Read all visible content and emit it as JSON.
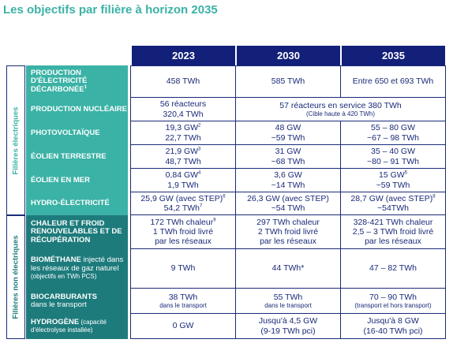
{
  "title": "Les objectifs par filière à horizon 2035",
  "headers": [
    "2023",
    "2030",
    "2035"
  ],
  "groups": {
    "elec": "Filières électriques",
    "nonelec": "Filières non électriques"
  },
  "rows": [
    {
      "label": "PRODUCTION D'ÉLECTRICITÉ DÉCARBONÉE",
      "label_sup": "1",
      "c2023": "458 TWh",
      "c2030": "585 TWh",
      "c2035": "Entre 650 et 693 TWh"
    },
    {
      "label": "PRODUCTION NUCLÉAIRE",
      "c2023_l1": "56 réacteurs",
      "c2023_l2": "320,4 TWh",
      "span_l1": "57 réacteurs en service 380 TWh",
      "span_l2": "(Cible haute à 420 TWh)"
    },
    {
      "label": "PHOTOVOLTAÏQUE",
      "c2023_l1": "19,3 GW",
      "c2023_sup": "2",
      "c2023_l2": "22,7 TWh",
      "c2030_l1": "48 GW",
      "c2030_l2": "~59 TWh",
      "c2035_l1": "55 – 80 GW",
      "c2035_l2": "~67 – 98 TWh"
    },
    {
      "label": "ÉOLIEN TERRESTRE",
      "c2023_l1": "21,9 GW",
      "c2023_sup": "3",
      "c2023_l2": "48,7 TWh",
      "c2030_l1": "31 GW",
      "c2030_l2": "~68 TWh",
      "c2035_l1": "35 – 40 GW",
      "c2035_l2": "~80 – 91 TWh"
    },
    {
      "label": "ÉOLIEN EN MER",
      "c2023_l1": "0,84 GW",
      "c2023_sup": "4",
      "c2023_l2": "1,9 TWh",
      "c2030_l1": "3,6 GW",
      "c2030_l2": "~14 TWh",
      "c2035_l1": "15 GW",
      "c2035_sup": "5",
      "c2035_l2": "~59 TWh"
    },
    {
      "label": "HYDRO-ÉLECTRICITÉ",
      "c2023_l1": "25,9 GW (avec STEP)",
      "c2023_sup": "6",
      "c2023_l2": "54,2 TWh",
      "c2023_sup2": "7",
      "c2030_l1": "26,3 GW (avec STEP)",
      "c2030_l2": "~54 TWh",
      "c2035_l1": "28,7 GW (avec STEP)",
      "c2035_sup": "8",
      "c2035_l2": "~54TWh"
    },
    {
      "label": "CHALEUR ET FROID RENOUVELABLES ET DE RÉCUPÉRATION",
      "c2023_l1": "172 TWh chaleur",
      "c2023_sup": "9",
      "c2023_l2": "1 TWh froid livré",
      "c2023_l3": "par les réseaux",
      "c2030_l1": "297 TWh chaleur",
      "c2030_l2": "2 TWh froid livré",
      "c2030_l3": "par les réseaux",
      "c2035_l1": "328-421 TWh chaleur",
      "c2035_l2": "2,5 – 3 TWh froid livré",
      "c2035_l3": "par les réseaux"
    },
    {
      "label_bold": "BIOMÉTHANE",
      "label_rest": " injecté dans les réseaux de gaz naturel",
      "label_small": "(objectifs en TWh PCS)",
      "c2023": "9 TWh",
      "c2030": "44 TWh*",
      "c2035": "47 – 82 TWh"
    },
    {
      "label_bold": "BIOCARBURANTS",
      "label_rest": "dans le transport",
      "c2023_l1": "38 TWh",
      "c2023_l2": "dans le transport",
      "c2030_l1": "55 TWh",
      "c2030_l2": "dans le transport",
      "c2035_l1": "70 – 90 TWh",
      "c2035_l2": "(transport et hors transport)"
    },
    {
      "label_bold": "HYDROGÈNE",
      "label_small1": " (capacité",
      "label_small2": "d'électrolyse installée)",
      "c2023": "0 GW",
      "c2030_l1": "Jusqu'à 4,5 GW",
      "c2030_l2": "(9-19 TWh pci)",
      "c2035_l1": "Jusqu'à 8 GW",
      "c2035_l2": "(16-40 TWh pci)"
    }
  ]
}
